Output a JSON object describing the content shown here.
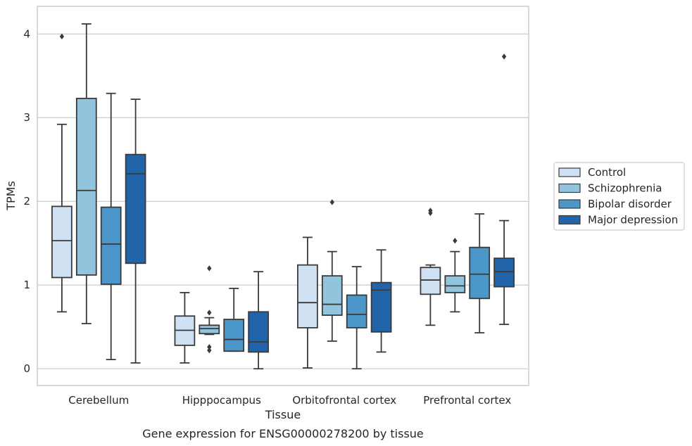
{
  "chart_data": {
    "type": "box",
    "title": "",
    "caption": "Gene expression for ENSG00000278200 by tissue",
    "xlabel": "Tissue",
    "ylabel": "TPMs",
    "ylim": [
      -0.2,
      4.33
    ],
    "yticks": [
      0,
      1,
      2,
      3,
      4
    ],
    "grid": "horizontal",
    "legend_position": "right",
    "categories": [
      "Cerebellum",
      "Hipppocampus",
      "Orbitofrontal cortex",
      "Prefrontal cortex"
    ],
    "series": [
      {
        "name": "Control",
        "color": "#cfe1f2",
        "boxes": [
          {
            "whisker_low": 0.68,
            "q1": 1.09,
            "median": 1.53,
            "q3": 1.94,
            "whisker_high": 2.92,
            "outliers": [
              3.97
            ]
          },
          {
            "whisker_low": 0.07,
            "q1": 0.28,
            "median": 0.46,
            "q3": 0.63,
            "whisker_high": 0.91,
            "outliers": []
          },
          {
            "whisker_low": 0.01,
            "q1": 0.49,
            "median": 0.79,
            "q3": 1.24,
            "whisker_high": 1.57,
            "outliers": []
          },
          {
            "whisker_low": 0.52,
            "q1": 0.89,
            "median": 1.06,
            "q3": 1.21,
            "whisker_high": 1.24,
            "outliers": [
              1.86,
              1.89
            ]
          }
        ]
      },
      {
        "name": "Schizophrenia",
        "color": "#93c4de",
        "boxes": [
          {
            "whisker_low": 0.54,
            "q1": 1.12,
            "median": 2.13,
            "q3": 3.23,
            "whisker_high": 4.12,
            "outliers": []
          },
          {
            "whisker_low": 0.41,
            "q1": 0.42,
            "median": 0.48,
            "q3": 0.52,
            "whisker_high": 0.61,
            "outliers": [
              0.67,
              1.2,
              0.26,
              0.22
            ]
          },
          {
            "whisker_low": 0.33,
            "q1": 0.64,
            "median": 0.77,
            "q3": 1.11,
            "whisker_high": 1.4,
            "outliers": [
              1.99
            ]
          },
          {
            "whisker_low": 0.68,
            "q1": 0.91,
            "median": 0.99,
            "q3": 1.11,
            "whisker_high": 1.4,
            "outliers": [
              1.53
            ]
          }
        ]
      },
      {
        "name": "Bipolar disorder",
        "color": "#4b97c9",
        "boxes": [
          {
            "whisker_low": 0.11,
            "q1": 1.01,
            "median": 1.49,
            "q3": 1.93,
            "whisker_high": 3.29,
            "outliers": []
          },
          {
            "whisker_low": 0.21,
            "q1": 0.21,
            "median": 0.35,
            "q3": 0.59,
            "whisker_high": 0.96,
            "outliers": []
          },
          {
            "whisker_low": 0.0,
            "q1": 0.49,
            "median": 0.65,
            "q3": 0.88,
            "whisker_high": 1.22,
            "outliers": []
          },
          {
            "whisker_low": 0.43,
            "q1": 0.84,
            "median": 1.13,
            "q3": 1.45,
            "whisker_high": 1.85,
            "outliers": []
          }
        ]
      },
      {
        "name": "Major depression",
        "color": "#2264aa",
        "boxes": [
          {
            "whisker_low": 0.07,
            "q1": 1.26,
            "median": 2.33,
            "q3": 2.56,
            "whisker_high": 3.22,
            "outliers": []
          },
          {
            "whisker_low": 0.0,
            "q1": 0.2,
            "median": 0.32,
            "q3": 0.68,
            "whisker_high": 1.16,
            "outliers": []
          },
          {
            "whisker_low": 0.2,
            "q1": 0.44,
            "median": 0.94,
            "q3": 1.03,
            "whisker_high": 1.42,
            "outliers": []
          },
          {
            "whisker_low": 0.53,
            "q1": 0.98,
            "median": 1.16,
            "q3": 1.32,
            "whisker_high": 1.77,
            "outliers": [
              3.73
            ]
          }
        ]
      }
    ]
  },
  "style": {
    "grid_color": "#cccccc",
    "frame_color": "#cccccc",
    "line_color": "#3a3a3a"
  }
}
